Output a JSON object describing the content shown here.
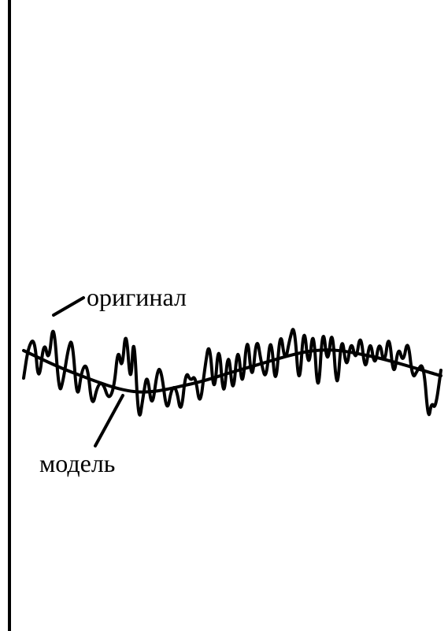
{
  "labels": {
    "original": "оригинал",
    "model": "модель"
  },
  "colors": {
    "stroke": "#000000",
    "background": "#ffffff"
  }
}
